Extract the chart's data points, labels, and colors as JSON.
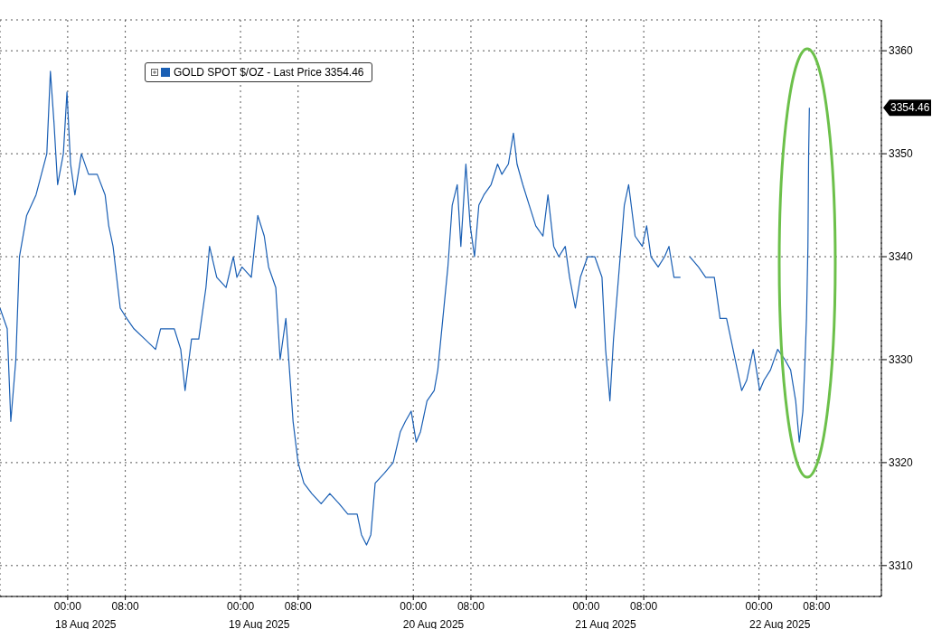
{
  "chart_data": {
    "type": "line",
    "x": [
      "2025-08-17T14:36",
      "2025-08-17T15:36",
      "2025-08-17T16:06",
      "2025-08-17T16:48",
      "2025-08-17T17:18",
      "2025-08-17T18:18",
      "2025-08-17T19:36",
      "2025-08-17T21:06",
      "2025-08-17T21:36",
      "2025-08-17T22:06",
      "2025-08-17T22:36",
      "2025-08-17T23:24",
      "2025-08-17T23:54",
      "2025-08-18T00:24",
      "2025-08-18T01:00",
      "2025-08-18T01:54",
      "2025-08-18T02:54",
      "2025-08-18T04:06",
      "2025-08-18T05:12",
      "2025-08-18T05:42",
      "2025-08-18T06:18",
      "2025-08-18T07:18",
      "2025-08-18T08:12",
      "2025-08-18T09:12",
      "2025-08-18T10:42",
      "2025-08-18T12:12",
      "2025-08-18T12:54",
      "2025-08-18T14:12",
      "2025-08-18T14:48",
      "2025-08-18T15:42",
      "2025-08-18T16:18",
      "2025-08-18T17:12",
      "2025-08-18T18:12",
      "2025-08-18T19:12",
      "2025-08-18T19:42",
      "2025-08-18T20:42",
      "2025-08-18T22:00",
      "2025-08-18T23:00",
      "2025-08-18T23:30",
      "2025-08-19T00:12",
      "2025-08-19T01:30",
      "2025-08-19T02:24",
      "2025-08-19T03:18",
      "2025-08-19T03:54",
      "2025-08-19T04:54",
      "2025-08-19T05:30",
      "2025-08-19T06:18",
      "2025-08-19T06:48",
      "2025-08-19T07:18",
      "2025-08-19T08:00",
      "2025-08-19T08:48",
      "2025-08-19T09:54",
      "2025-08-19T11:12",
      "2025-08-19T12:24",
      "2025-08-19T13:42",
      "2025-08-19T14:54",
      "2025-08-19T16:12",
      "2025-08-19T16:48",
      "2025-08-19T17:30",
      "2025-08-19T18:06",
      "2025-08-19T18:42",
      "2025-08-19T20:00",
      "2025-08-19T21:12",
      "2025-08-19T22:12",
      "2025-08-19T22:54",
      "2025-08-19T23:42",
      "2025-08-20T00:24",
      "2025-08-20T01:00",
      "2025-08-20T01:54",
      "2025-08-20T02:54",
      "2025-08-20T03:24",
      "2025-08-20T04:06",
      "2025-08-20T04:48",
      "2025-08-20T05:24",
      "2025-08-20T06:06",
      "2025-08-20T06:36",
      "2025-08-20T07:18",
      "2025-08-20T07:54",
      "2025-08-20T08:30",
      "2025-08-20T09:06",
      "2025-08-20T09:48",
      "2025-08-20T10:48",
      "2025-08-20T11:42",
      "2025-08-20T12:18",
      "2025-08-20T13:12",
      "2025-08-20T13:54",
      "2025-08-20T14:24",
      "2025-08-20T15:12",
      "2025-08-20T16:06",
      "2025-08-20T17:00",
      "2025-08-20T18:00",
      "2025-08-20T18:42",
      "2025-08-20T19:30",
      "2025-08-20T20:12",
      "2025-08-20T21:06",
      "2025-08-20T21:42",
      "2025-08-20T22:30",
      "2025-08-20T23:12",
      "2025-08-21T00:12",
      "2025-08-21T01:12",
      "2025-08-21T01:42",
      "2025-08-21T02:12",
      "2025-08-21T02:42",
      "2025-08-21T03:18",
      "2025-08-21T03:48",
      "2025-08-21T04:30",
      "2025-08-21T05:18",
      "2025-08-21T05:54",
      "2025-08-21T06:48",
      "2025-08-21T07:48",
      "2025-08-21T08:24",
      "2025-08-21T09:00",
      "2025-08-21T10:00",
      "2025-08-21T10:54",
      "2025-08-21T11:30",
      "2025-08-21T12:12",
      "2025-08-21T13:06",
      "2025-08-21T13:42",
      "2025-08-21T14:24",
      "2025-08-21T15:36",
      "2025-08-21T16:36",
      "2025-08-21T17:48",
      "2025-08-21T18:36",
      "2025-08-21T19:30",
      "2025-08-21T20:06",
      "2025-08-21T21:00",
      "2025-08-21T21:36",
      "2025-08-21T22:18",
      "2025-08-21T23:12",
      "2025-08-22T00:06",
      "2025-08-22T00:42",
      "2025-08-22T01:36",
      "2025-08-22T02:36",
      "2025-08-22T03:36",
      "2025-08-22T04:24",
      "2025-08-22T05:06",
      "2025-08-22T05:36",
      "2025-08-22T06:06",
      "2025-08-22T06:24",
      "2025-08-22T06:36",
      "2025-08-22T06:48",
      "2025-08-22T06:54",
      "2025-08-22T07:00"
    ],
    "series": [
      {
        "name": "GOLD SPOT $/OZ - Last Price 3354.46",
        "color": "#1a5fb4",
        "values": [
          3335,
          3333,
          3324,
          3330,
          3340,
          3344,
          3346,
          3350,
          3358,
          3353,
          3347,
          3350,
          3356,
          3349,
          3346,
          3350,
          3348,
          3348,
          3346,
          3343,
          3341,
          3335,
          3334,
          3333,
          3332,
          3331,
          3333,
          3333,
          3333,
          3331,
          3327,
          3332,
          3332,
          3337,
          3341,
          3338,
          3337,
          3340,
          3338,
          3339,
          3338,
          3344,
          3342,
          3339,
          3337,
          3330,
          3334,
          3329,
          3324,
          3320,
          3318,
          3317,
          3316,
          3317,
          3316,
          3315,
          3315,
          3313,
          3312,
          3313,
          3318,
          3319,
          3320,
          3323,
          3324,
          3325,
          3322,
          3323,
          3326,
          3327,
          3329,
          3334,
          3339,
          3345,
          3347,
          3341,
          3349,
          3343,
          3340,
          3345,
          3346,
          3347,
          3349,
          3348,
          3349,
          3352,
          3349,
          3347,
          3345,
          3343,
          3342,
          3346,
          3341,
          3340,
          3341,
          3338,
          3335,
          3338,
          3340,
          3340,
          3339,
          3338,
          3331,
          3326,
          3332,
          3338,
          3345,
          3347,
          3342,
          3341,
          3343,
          3340,
          3339,
          3340,
          3341,
          3338,
          3338,
          null,
          3340,
          3339,
          3338,
          3338,
          3334,
          3334,
          3332,
          3329,
          3327,
          3328,
          3331,
          3327,
          3328,
          3329,
          3331,
          3330,
          3329,
          3326,
          3322,
          3325,
          3330,
          3334,
          3341,
          3350,
          3354.46
        ]
      }
    ],
    "xlim": [
      "2025-08-17T14:36",
      "2025-08-22T17:00"
    ],
    "xticks": [
      {
        "value": "2025-08-18T00:00",
        "label": "00:00"
      },
      {
        "value": "2025-08-18T08:00",
        "label": "08:00"
      },
      {
        "value": "2025-08-19T00:00",
        "label": "00:00"
      },
      {
        "value": "2025-08-19T08:00",
        "label": "08:00"
      },
      {
        "value": "2025-08-20T00:00",
        "label": "00:00"
      },
      {
        "value": "2025-08-20T08:00",
        "label": "08:00"
      },
      {
        "value": "2025-08-21T00:00",
        "label": "00:00"
      },
      {
        "value": "2025-08-21T08:00",
        "label": "08:00"
      },
      {
        "value": "2025-08-22T00:00",
        "label": "00:00"
      },
      {
        "value": "2025-08-22T08:00",
        "label": "08:00"
      }
    ],
    "x2lim": [
      "2025-08-17T14:36",
      "2025-08-22T17:00"
    ],
    "x2ticks": [
      {
        "value": "2025-08-18T02:30",
        "label": "18 Aug 2025"
      },
      {
        "value": "2025-08-19T02:36",
        "label": "19 Aug 2025"
      },
      {
        "value": "2025-08-20T02:48",
        "label": "20 Aug 2025"
      },
      {
        "value": "2025-08-21T02:42",
        "label": "21 Aug 2025"
      },
      {
        "value": "2025-08-22T02:54",
        "label": "22 Aug 2025"
      }
    ],
    "ylim": [
      3307,
      3363
    ],
    "yticks": [
      3310,
      3320,
      3330,
      3340,
      3350,
      3360
    ],
    "annotations": [
      "3354.46"
    ],
    "grid": true,
    "legend": "top left",
    "marker": "none",
    "line_style": "solid"
  }
}
